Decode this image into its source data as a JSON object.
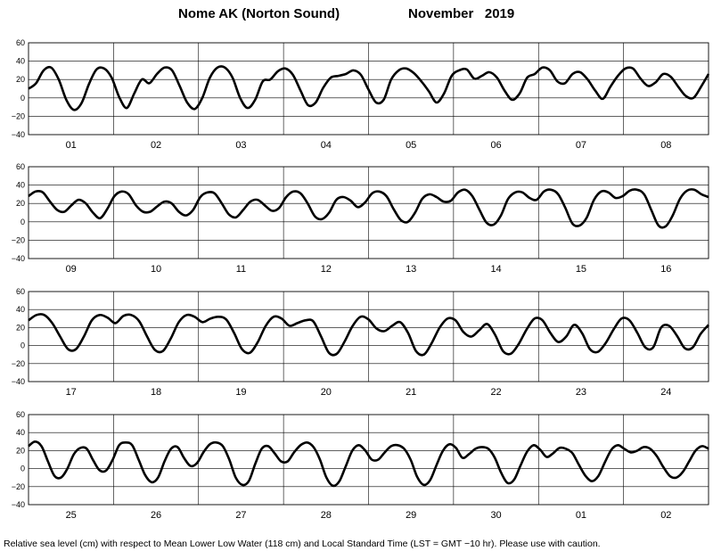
{
  "title": {
    "station": "Nome AK (Norton Sound)",
    "period": "November   2019"
  },
  "footer": "Relative sea level (cm) with respect to Mean Lower Low Water (118 cm) and Local Standard Time (LST = GMT −10 hr). Please use with caution.",
  "chart_data": {
    "type": "line",
    "title": "Nome AK (Norton Sound)   November 2019",
    "ylabel": "",
    "xlabel": "",
    "ylim": [
      -40,
      60
    ],
    "yticks": [
      -40,
      -20,
      0,
      20,
      40,
      60
    ],
    "grid": true,
    "line_color": "#000000",
    "panels": [
      {
        "day_labels": [
          "01",
          "02",
          "03",
          "04",
          "05",
          "06",
          "07",
          "08"
        ],
        "knots": [
          10,
          16,
          30,
          33,
          20,
          -2,
          -13,
          -6,
          15,
          31,
          32,
          22,
          1,
          -11,
          5,
          20,
          16,
          26,
          33,
          30,
          13,
          -5,
          -12,
          0,
          22,
          33,
          33,
          22,
          0,
          -11,
          -2,
          18,
          20,
          29,
          32,
          25,
          8,
          -8,
          -5,
          11,
          22,
          24,
          26,
          30,
          25,
          9,
          -5,
          -2,
          20,
          30,
          32,
          27,
          18,
          7,
          -5,
          5,
          24,
          30,
          31,
          21,
          24,
          28,
          22,
          8,
          -2,
          5,
          22,
          26,
          33,
          30,
          18,
          16,
          26,
          28,
          20,
          8,
          -1,
          12,
          24,
          32,
          32,
          21,
          13,
          17,
          26,
          23,
          12,
          2,
          0,
          12,
          26
        ]
      },
      {
        "day_labels": [
          "09",
          "10",
          "11",
          "12",
          "13",
          "14",
          "15",
          "16"
        ],
        "knots": [
          28,
          33,
          32,
          22,
          13,
          11,
          18,
          24,
          20,
          10,
          4,
          14,
          28,
          33,
          30,
          18,
          11,
          11,
          17,
          22,
          20,
          11,
          7,
          13,
          27,
          32,
          31,
          20,
          8,
          5,
          13,
          22,
          24,
          18,
          12,
          15,
          27,
          33,
          31,
          20,
          6,
          3,
          10,
          24,
          27,
          23,
          16,
          21,
          31,
          33,
          28,
          14,
          2,
          0,
          10,
          25,
          30,
          27,
          22,
          23,
          32,
          35,
          28,
          13,
          -1,
          -3,
          7,
          25,
          32,
          32,
          26,
          24,
          33,
          35,
          30,
          15,
          -2,
          -4,
          5,
          24,
          33,
          32,
          26,
          28,
          34,
          35,
          30,
          13,
          -4,
          -5,
          7,
          25,
          34,
          35,
          30,
          27
        ]
      },
      {
        "day_labels": [
          "17",
          "18",
          "19",
          "20",
          "21",
          "22",
          "23",
          "24"
        ],
        "knots": [
          28,
          34,
          34,
          25,
          10,
          -4,
          -4,
          10,
          28,
          34,
          31,
          25,
          33,
          34,
          27,
          10,
          -5,
          -6,
          8,
          26,
          34,
          32,
          26,
          30,
          32,
          29,
          14,
          -4,
          -8,
          4,
          22,
          32,
          30,
          22,
          25,
          28,
          27,
          10,
          -8,
          -9,
          5,
          22,
          32,
          29,
          19,
          16,
          22,
          26,
          14,
          -6,
          -10,
          3,
          20,
          30,
          28,
          15,
          10,
          17,
          24,
          12,
          -6,
          -9,
          2,
          18,
          30,
          28,
          14,
          4,
          10,
          23,
          14,
          -4,
          -7,
          3,
          18,
          30,
          28,
          14,
          -2,
          -2,
          20,
          22,
          11,
          -3,
          -2,
          13,
          23
        ]
      },
      {
        "day_labels": [
          "25",
          "26",
          "27",
          "28",
          "29",
          "30",
          "01",
          "02"
        ],
        "knots": [
          25,
          30,
          25,
          8,
          -8,
          -10,
          0,
          16,
          23,
          22,
          9,
          -2,
          -2,
          10,
          26,
          29,
          26,
          10,
          -7,
          -15,
          -10,
          8,
          22,
          24,
          12,
          3,
          6,
          18,
          27,
          29,
          25,
          10,
          -10,
          -18,
          -14,
          5,
          22,
          25,
          17,
          8,
          8,
          18,
          26,
          29,
          24,
          10,
          -10,
          -19,
          -14,
          3,
          20,
          26,
          20,
          10,
          10,
          18,
          25,
          26,
          22,
          10,
          -9,
          -18,
          -13,
          4,
          20,
          27,
          23,
          12,
          16,
          22,
          24,
          22,
          12,
          -5,
          -16,
          -12,
          4,
          19,
          26,
          21,
          13,
          17,
          23,
          22,
          17,
          4,
          -8,
          -14,
          -8,
          7,
          21,
          26,
          22,
          18,
          20,
          24,
          22,
          14,
          2,
          -8,
          -10,
          -4,
          8,
          20,
          25,
          22
        ]
      }
    ]
  }
}
